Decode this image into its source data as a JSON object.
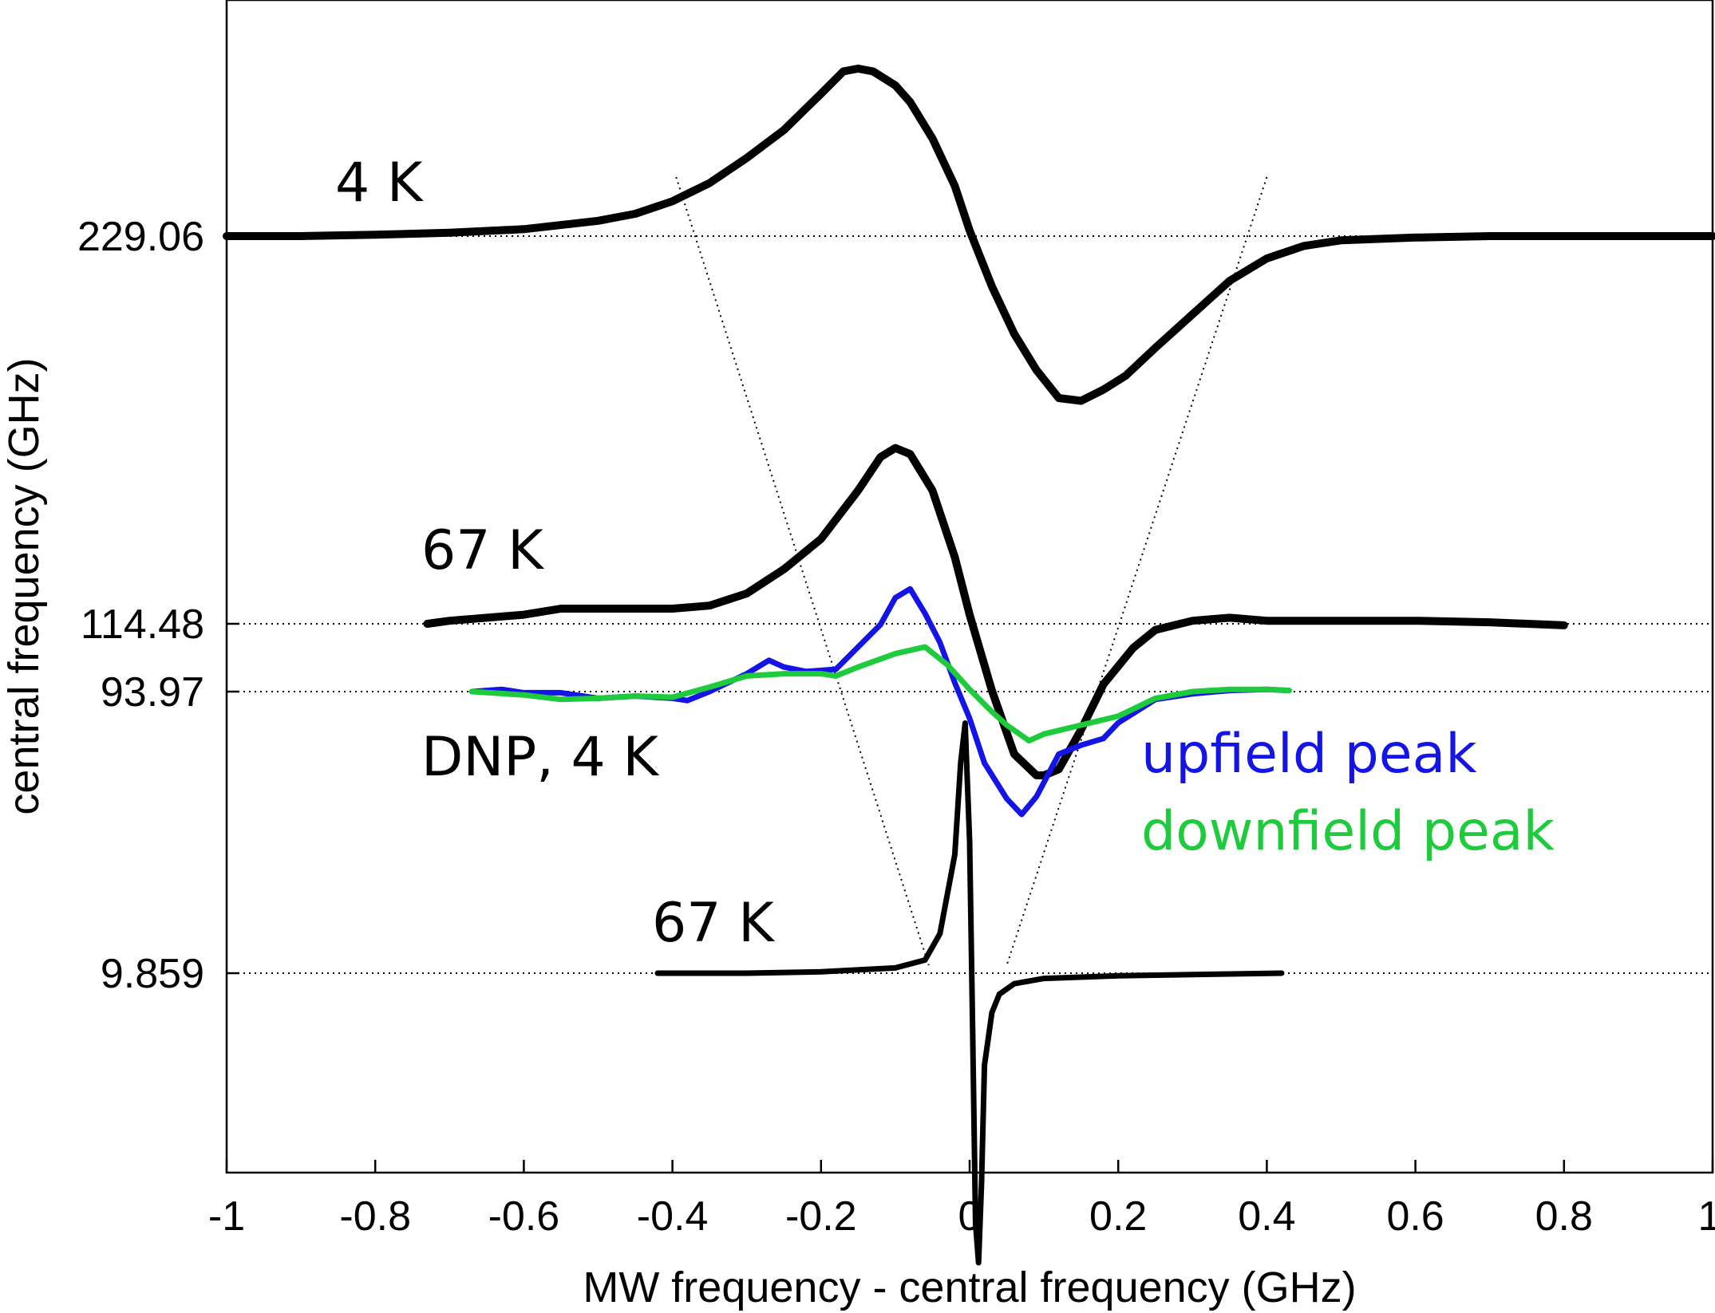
{
  "chart_data": {
    "type": "line",
    "title": "",
    "xlabel": "MW frequency - central frequency (GHz)",
    "ylabel": "central frequency (GHz)",
    "xlim": [
      -1,
      1
    ],
    "x_ticks": [
      "-1",
      "-0.8",
      "-0.6",
      "-0.4",
      "-0.2",
      "0",
      "0.2",
      "0.4",
      "0.6",
      "0.8",
      "1"
    ],
    "y_ticks": [
      "229.06",
      "114.48",
      "93.97",
      "9.859"
    ],
    "annotations": [
      "4 K",
      "67 K",
      "DNP, 4 K",
      "67 K"
    ],
    "legend": [
      {
        "label": "upfield peak",
        "color": "#1414e6"
      },
      {
        "label": "downfield peak",
        "color": "#1ecb3c"
      }
    ],
    "series": [
      {
        "name": "229.06 GHz, 4 K",
        "baseline": "229.06",
        "color": "#000000",
        "x": [
          -1.0,
          -0.9,
          -0.8,
          -0.7,
          -0.6,
          -0.5,
          -0.45,
          -0.4,
          -0.35,
          -0.3,
          -0.25,
          -0.2,
          -0.17,
          -0.15,
          -0.13,
          -0.1,
          -0.08,
          -0.05,
          -0.02,
          0.0,
          0.03,
          0.06,
          0.09,
          0.12,
          0.15,
          0.18,
          0.21,
          0.25,
          0.3,
          0.35,
          0.4,
          0.45,
          0.5,
          0.6,
          0.7,
          0.8,
          0.9,
          1.0
        ],
        "y": [
          0,
          0,
          0.05,
          0.12,
          0.25,
          0.55,
          0.8,
          1.25,
          1.9,
          2.8,
          3.8,
          5.1,
          5.9,
          6.0,
          5.9,
          5.4,
          4.8,
          3.5,
          1.8,
          0.2,
          -1.8,
          -3.5,
          -4.8,
          -5.8,
          -5.9,
          -5.5,
          -5.0,
          -4.0,
          -2.8,
          -1.6,
          -0.8,
          -0.35,
          -0.15,
          -0.05,
          0,
          0,
          0,
          0
        ]
      },
      {
        "name": "114.48 GHz, 67 K",
        "baseline": "114.48",
        "color": "#000000",
        "x": [
          -0.73,
          -0.7,
          -0.6,
          -0.55,
          -0.5,
          -0.4,
          -0.35,
          -0.3,
          -0.25,
          -0.2,
          -0.15,
          -0.12,
          -0.1,
          -0.08,
          -0.05,
          -0.02,
          0.0,
          0.03,
          0.06,
          0.09,
          0.1,
          0.12,
          0.15,
          0.18,
          0.22,
          0.25,
          0.3,
          0.35,
          0.4,
          0.5,
          0.6,
          0.7,
          0.8
        ],
        "y": [
          0,
          0.1,
          0.3,
          0.5,
          0.5,
          0.5,
          0.6,
          1.0,
          1.8,
          2.8,
          4.4,
          5.5,
          5.8,
          5.6,
          4.4,
          2.2,
          0.3,
          -2.2,
          -4.3,
          -5.0,
          -5.0,
          -4.8,
          -3.5,
          -2.0,
          -0.8,
          -0.2,
          0.1,
          0.2,
          0.1,
          0.1,
          0.1,
          0.05,
          -0.05
        ]
      },
      {
        "name": "upfield peak",
        "baseline": "93.97",
        "color": "#1414e6",
        "x": [
          -0.67,
          -0.63,
          -0.6,
          -0.55,
          -0.5,
          -0.45,
          -0.4,
          -0.38,
          -0.35,
          -0.3,
          -0.27,
          -0.25,
          -0.22,
          -0.18,
          -0.15,
          -0.12,
          -0.1,
          -0.08,
          -0.06,
          -0.04,
          -0.02,
          0.0,
          0.02,
          0.05,
          0.07,
          0.09,
          0.12,
          0.15,
          0.18,
          0.2,
          0.25,
          0.3,
          0.35,
          0.4,
          0.43
        ],
        "y": [
          0,
          0.1,
          -0.05,
          -0.05,
          -0.3,
          -0.2,
          -0.3,
          -0.4,
          0.0,
          0.8,
          1.4,
          1.1,
          0.9,
          1.0,
          2.0,
          3.0,
          4.2,
          4.6,
          3.5,
          2.2,
          0.4,
          -1.2,
          -3.2,
          -4.8,
          -5.5,
          -4.7,
          -2.8,
          -2.4,
          -2.1,
          -1.4,
          -0.35,
          -0.1,
          0.05,
          0.1,
          0.05
        ]
      },
      {
        "name": "downfield peak",
        "baseline": "93.97",
        "color": "#1ecb3c",
        "x": [
          -0.67,
          -0.6,
          -0.55,
          -0.5,
          -0.45,
          -0.4,
          -0.35,
          -0.3,
          -0.25,
          -0.2,
          -0.18,
          -0.15,
          -0.1,
          -0.06,
          -0.03,
          0.0,
          0.03,
          0.05,
          0.08,
          0.1,
          0.15,
          0.2,
          0.25,
          0.3,
          0.35,
          0.4,
          0.43
        ],
        "y": [
          0,
          -0.15,
          -0.35,
          -0.3,
          -0.2,
          -0.25,
          0.2,
          0.7,
          0.8,
          0.8,
          0.7,
          1.1,
          1.7,
          2.0,
          1.2,
          0.1,
          -0.9,
          -1.5,
          -2.2,
          -1.9,
          -1.5,
          -1.1,
          -0.3,
          0.0,
          0.1,
          0.1,
          0.05
        ]
      },
      {
        "name": "9.859 GHz, 67 K",
        "baseline": "9.859",
        "color": "#000000",
        "x": [
          -0.42,
          -0.3,
          -0.2,
          -0.1,
          -0.06,
          -0.04,
          -0.02,
          -0.012,
          -0.006,
          0.0,
          0.004,
          0.008,
          0.012,
          0.016,
          0.02,
          0.03,
          0.04,
          0.06,
          0.1,
          0.2,
          0.3,
          0.42
        ],
        "y": [
          0,
          0,
          0.05,
          0.2,
          0.5,
          1.5,
          4.5,
          8.0,
          9.5,
          5.0,
          -2.0,
          -9.5,
          -11.0,
          -8.0,
          -3.5,
          -1.5,
          -0.8,
          -0.4,
          -0.2,
          -0.1,
          -0.05,
          0
        ]
      }
    ],
    "guide_lines": [
      {
        "style": "dotted",
        "x": [
          -0.39,
          0.45
        ],
        "ref": "horizontal baselines at each central frequency"
      },
      {
        "style": "dotted",
        "x": [
          -0.39,
          -0.06
        ],
        "ref": "left funnel guide"
      },
      {
        "style": "dotted",
        "x": [
          0.4,
          0.05
        ],
        "ref": "right funnel guide"
      }
    ]
  }
}
